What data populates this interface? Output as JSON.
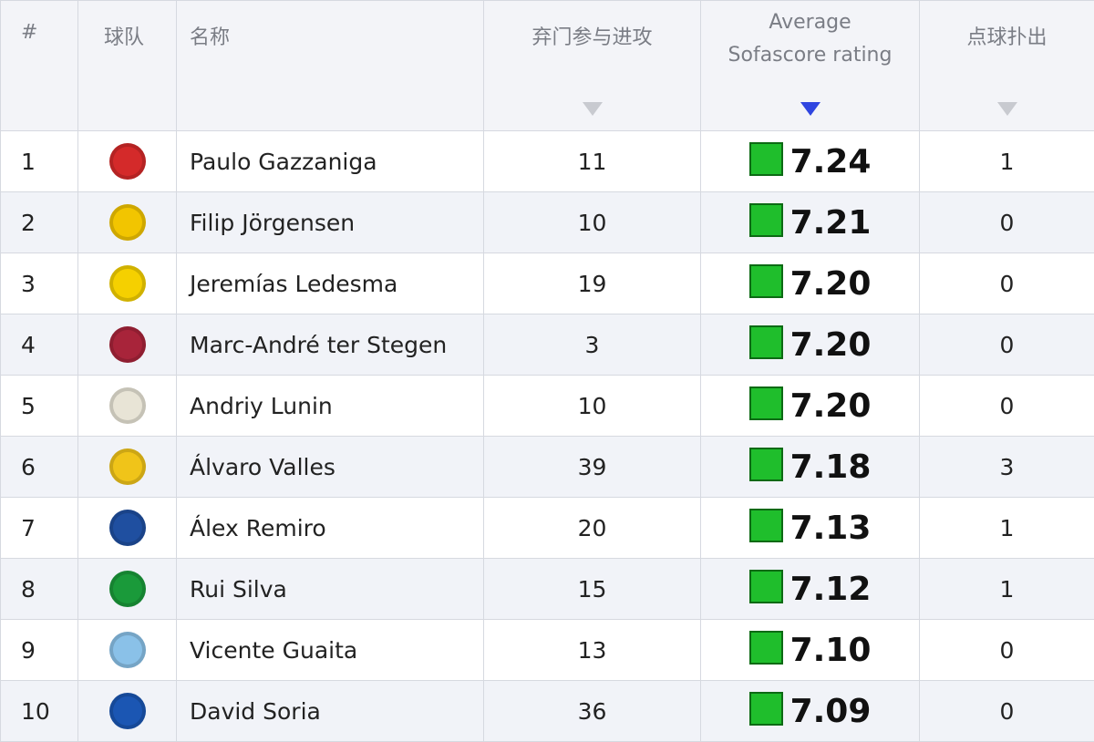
{
  "columns": {
    "rank": "#",
    "team": "球队",
    "name": "名称",
    "errors": "弃门参与进攻",
    "rating_line1": "Average",
    "rating_line2": "Sofascore rating",
    "penalties": "点球扑出"
  },
  "sort": {
    "active_column": "rating",
    "direction": "descending",
    "active_color": "#2f45e0"
  },
  "rating_badge_color": "#1fbe2c",
  "rows": [
    {
      "rank": "1",
      "crest": "girona-crest-icon",
      "crest_color": "#d42a2a",
      "name": "Paulo Gazzaniga",
      "stat": "11",
      "rating": "7.24",
      "pen": "1"
    },
    {
      "rank": "2",
      "crest": "villarreal-crest-icon",
      "crest_color": "#f2c500",
      "name": "Filip Jörgensen",
      "stat": "10",
      "rating": "7.21",
      "pen": "0"
    },
    {
      "rank": "3",
      "crest": "cadiz-crest-icon",
      "crest_color": "#f5d000",
      "name": "Jeremías Ledesma",
      "stat": "19",
      "rating": "7.20",
      "pen": "0"
    },
    {
      "rank": "4",
      "crest": "barcelona-crest-icon",
      "crest_color": "#a8243a",
      "name": "Marc-André ter Stegen",
      "stat": "3",
      "rating": "7.20",
      "pen": "0"
    },
    {
      "rank": "5",
      "crest": "real-madrid-crest-icon",
      "crest_color": "#e8e4d6",
      "name": "Andriy Lunin",
      "stat": "10",
      "rating": "7.20",
      "pen": "0"
    },
    {
      "rank": "6",
      "crest": "las-palmas-crest-icon",
      "crest_color": "#f0c419",
      "name": "Álvaro Valles",
      "stat": "39",
      "rating": "7.18",
      "pen": "3"
    },
    {
      "rank": "7",
      "crest": "real-sociedad-crest-icon",
      "crest_color": "#1f4fa0",
      "name": "Álex Remiro",
      "stat": "20",
      "rating": "7.13",
      "pen": "1"
    },
    {
      "rank": "8",
      "crest": "real-betis-crest-icon",
      "crest_color": "#1a9a3a",
      "name": "Rui Silva",
      "stat": "15",
      "rating": "7.12",
      "pen": "1"
    },
    {
      "rank": "9",
      "crest": "celta-vigo-crest-icon",
      "crest_color": "#8ac1e8",
      "name": "Vicente Guaita",
      "stat": "13",
      "rating": "7.10",
      "pen": "0"
    },
    {
      "rank": "10",
      "crest": "getafe-crest-icon",
      "crest_color": "#1b56b3",
      "name": "David Soria",
      "stat": "36",
      "rating": "7.09",
      "pen": "0"
    }
  ]
}
